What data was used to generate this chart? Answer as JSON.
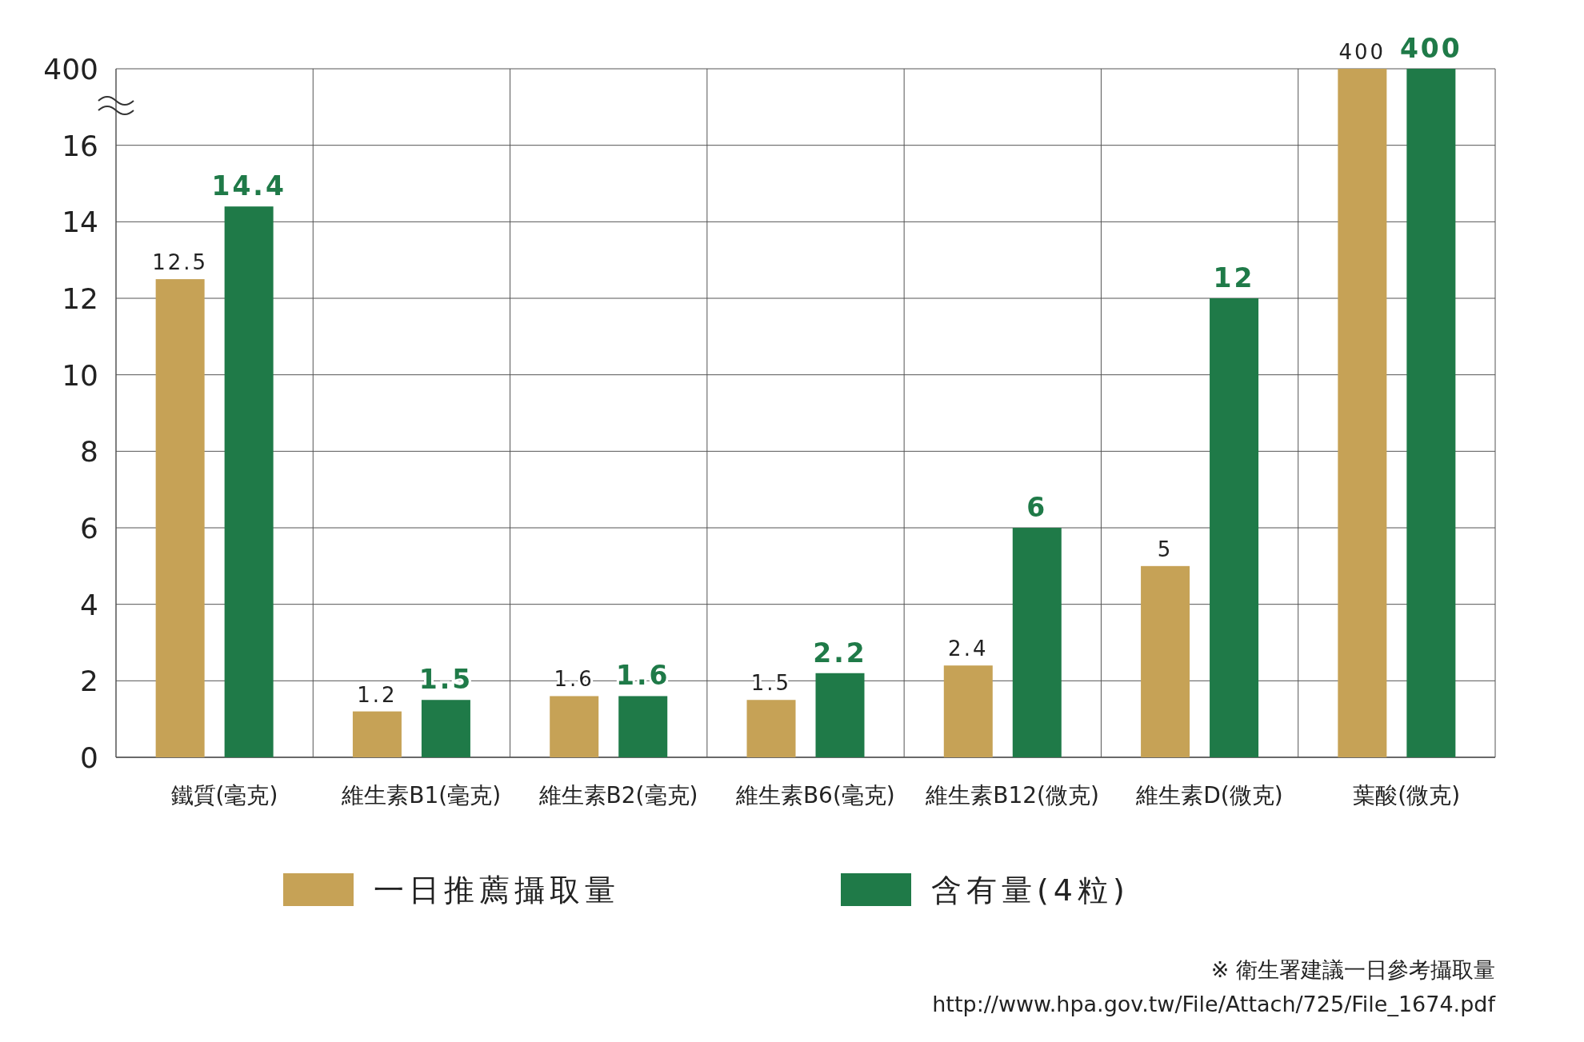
{
  "chart_data": [
    {
      "type": "bar",
      "categories": [
        "鐵質(毫克)",
        "維生素B1(毫克)",
        "維生素B2(毫克)",
        "維生素B6(毫克)",
        "維生素B12(微克)",
        "維生素D(微克)"
      ],
      "series": [
        {
          "name": "一日推薦攝取量",
          "color": "#c6a256",
          "values": [
            12.5,
            1.2,
            1.6,
            1.5,
            2.4,
            5
          ]
        },
        {
          "name": "含有量(4粒)",
          "color": "#1f7a48",
          "values": [
            14.4,
            1.5,
            1.6,
            2.2,
            6,
            12
          ]
        }
      ],
      "ylim": [
        0,
        16
      ],
      "yticks": [
        0,
        2,
        4,
        6,
        8,
        10,
        12,
        14,
        16
      ],
      "grid": true,
      "legend": "bottom",
      "data_labels": true,
      "annotations": [
        "※ 衛生署建議一日參考攝取量",
        "http://www.hpa.gov.tw/File/Attach/725/File_1674.pdf"
      ]
    },
    {
      "type": "bar",
      "categories": [
        "葉酸(微克)"
      ],
      "series": [
        {
          "color": "#c6a256",
          "values": [
            400
          ]
        },
        {
          "color": "#1f7a48",
          "values": [
            400
          ]
        }
      ],
      "ylim": [
        0,
        400
      ],
      "data_labels": true,
      "annotations": [
        "400"
      ]
    }
  ]
}
